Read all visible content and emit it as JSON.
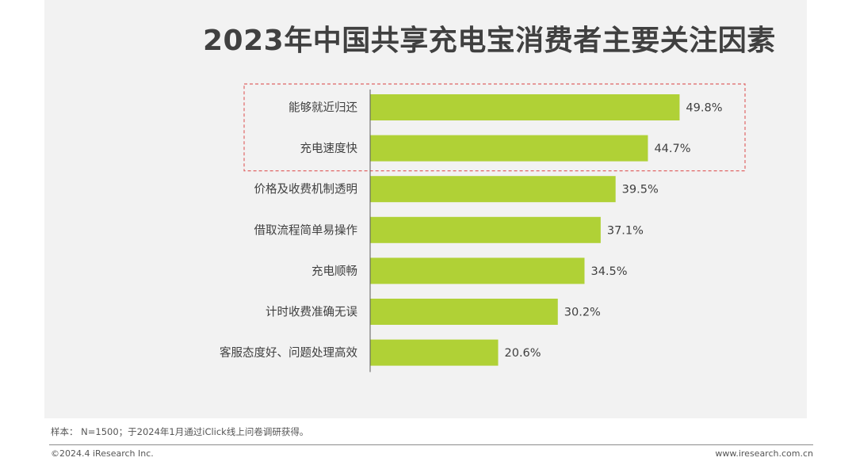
{
  "title": "2023年中国共享充电宝消费者主要关注因素",
  "chart_data": {
    "type": "bar",
    "orientation": "horizontal",
    "categories": [
      "能够就近归还",
      "充电速度快",
      "价格及收费机制透明",
      "借取流程简单易操作",
      "充电顺畅",
      "计时收费准确无误",
      "客服态度好、问题处理高效"
    ],
    "values": [
      49.8,
      44.7,
      39.5,
      37.1,
      34.5,
      30.2,
      20.6
    ],
    "value_labels": [
      "49.8%",
      "44.7%",
      "39.5%",
      "37.1%",
      "34.5%",
      "30.2%",
      "20.6%"
    ],
    "unit": "%",
    "xlim": [
      0,
      50
    ],
    "highlighted_categories": [
      "能够就近归还",
      "充电速度快"
    ],
    "grid": false,
    "legend": "none",
    "colors": {
      "bar": "#b0d136",
      "axis": "#595959",
      "highlight_border": "#e06666",
      "label": "#404040"
    }
  },
  "footer": {
    "note": "样本： N=1500；于2024年1月通过iClick线上问卷调研获得。",
    "copyright": "©2024.4 iResearch Inc.",
    "website": "www.iresearch.com.cn"
  }
}
